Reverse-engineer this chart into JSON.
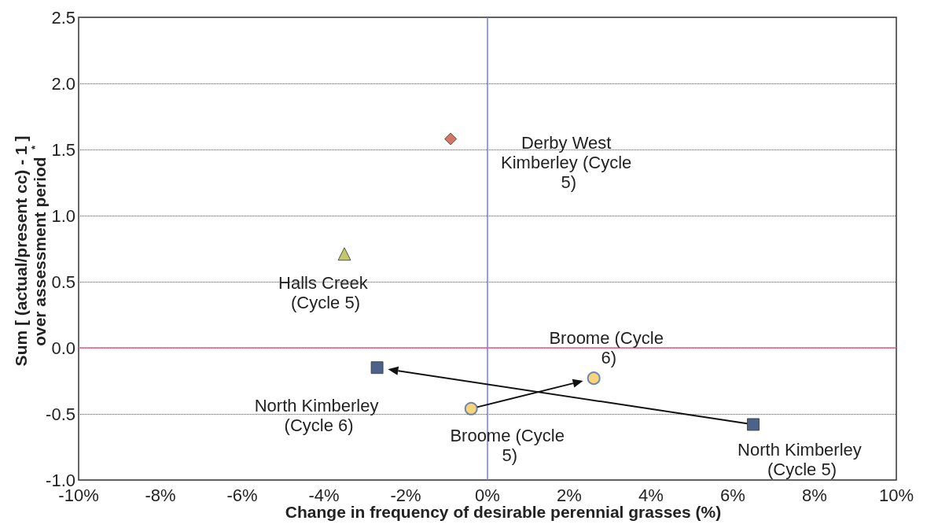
{
  "chart_data": {
    "type": "scatter",
    "xlabel": "Change in frequency of desirable perennial grasses (%)",
    "ylabel": "Sum [ (actual/present cc) - 1 ] over assessment period$^{*}$",
    "xlim": [
      -10,
      10
    ],
    "ylim": [
      -1,
      2.5
    ],
    "xticks": [
      {
        "value": -10,
        "label": "-10%"
      },
      {
        "value": -8,
        "label": "-8%"
      },
      {
        "value": -6,
        "label": "-6%"
      },
      {
        "value": -4,
        "label": "-4%"
      },
      {
        "value": -2,
        "label": "-2%"
      },
      {
        "value": 0,
        "label": "0%"
      },
      {
        "value": 2,
        "label": "2%"
      },
      {
        "value": 4,
        "label": "4%"
      },
      {
        "value": 6,
        "label": "6%"
      },
      {
        "value": 8,
        "label": "8%"
      },
      {
        "value": 10,
        "label": "10%"
      }
    ],
    "yticks": [
      {
        "value": -1,
        "label": "-1.0"
      },
      {
        "value": -0.5,
        "label": "-0.5"
      },
      {
        "value": 0,
        "label": "0.0"
      },
      {
        "value": 0.5,
        "label": "0.5"
      },
      {
        "value": 1,
        "label": "1.0"
      },
      {
        "value": 1.5,
        "label": "1.5"
      },
      {
        "value": 2,
        "label": "2.0"
      },
      {
        "value": 2.5,
        "label": "2.5"
      }
    ],
    "grid": "y",
    "ref_lines": [
      {
        "axis": "x",
        "value": 0,
        "color": "#6f7bff"
      },
      {
        "axis": "y",
        "value": 0,
        "color": "#ff5a87"
      }
    ],
    "series": [
      {
        "color": "#c8553d",
        "marker": "diamond",
        "x": [
          -0.9
        ],
        "values": [
          1.58
        ]
      },
      {
        "color": "#b5b945",
        "marker": "triangle",
        "x": [
          -3.5
        ],
        "values": [
          0.71
        ]
      },
      {
        "color": "#1f3b6b",
        "marker": "square",
        "x": [
          6.5,
          -2.7
        ],
        "values": [
          -0.58,
          -0.15
        ]
      },
      {
        "color": "#f7c95a",
        "marker": "circle",
        "x": [
          -0.4,
          2.6
        ],
        "values": [
          -0.46,
          -0.23
        ]
      }
    ],
    "annotations": [
      {
        "text": "Derby West Kimberley (Cycle 5)",
        "x": -0.9,
        "y": 1.58
      },
      {
        "text": "Halls Creek (Cycle 5)",
        "x": -3.5,
        "y": 0.71
      },
      {
        "text": "North Kimberley (Cycle 6)",
        "x": -2.7,
        "y": -0.15
      },
      {
        "text": "North Kimberley (Cycle 5)",
        "x": 6.5,
        "y": -0.58
      },
      {
        "text": "Broome (Cycle 6)",
        "x": 2.6,
        "y": -0.23
      },
      {
        "text": "Broome (Cycle 5)",
        "x": -0.4,
        "y": -0.46
      }
    ]
  }
}
